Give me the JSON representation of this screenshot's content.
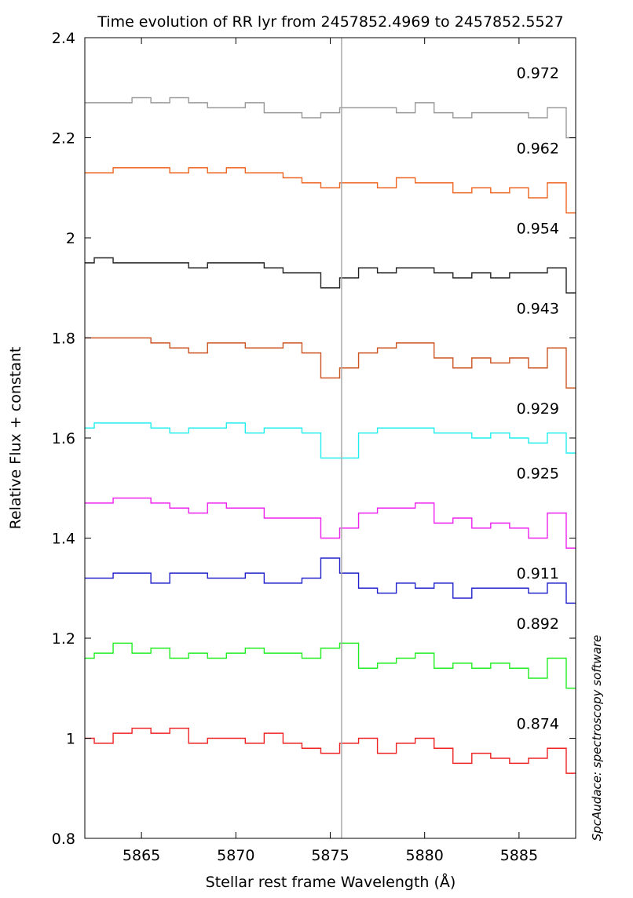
{
  "chart_data": {
    "type": "line",
    "title": "Time evolution of RR lyr from 2457852.4969 to 2457852.5527",
    "xlabel": "Stellar rest frame Wavelength (Å)",
    "ylabel": "Relative Flux + constant",
    "xlim": [
      5862,
      5888
    ],
    "ylim": [
      0.8,
      2.4
    ],
    "x_ticks": [
      5865,
      5870,
      5875,
      5880,
      5885
    ],
    "x_tick_labels": [
      "5865",
      "5870",
      "5875",
      "5880",
      "5885"
    ],
    "y_ticks": [
      0.8,
      1.0,
      1.2,
      1.4,
      1.6,
      1.8,
      2.0,
      2.2,
      2.4
    ],
    "y_tick_labels": [
      "0.8",
      "1",
      "1.2",
      "1.4",
      "1.6",
      "1.8",
      "2",
      "2.2",
      "2.4"
    ],
    "vertical_line_x": 5875.6,
    "vertical_line_color": "#aaaaaa",
    "credit": "SpcAudace: spectroscopy software",
    "grid": false,
    "series": [
      {
        "label": "0.874",
        "color": "#ee2222",
        "label_y": 1.03,
        "x": [
          5862,
          5863,
          5864,
          5865,
          5866,
          5867,
          5868,
          5869,
          5870,
          5871,
          5872,
          5873,
          5874,
          5875,
          5876,
          5877,
          5878,
          5879,
          5880,
          5881,
          5882,
          5883,
          5884,
          5885,
          5886,
          5887,
          5888
        ],
        "y": [
          1.0,
          0.99,
          1.01,
          1.02,
          1.01,
          1.02,
          0.99,
          1.0,
          1.0,
          0.99,
          1.01,
          0.99,
          0.98,
          0.97,
          0.99,
          1.0,
          0.97,
          0.99,
          1.0,
          0.98,
          0.95,
          0.97,
          0.96,
          0.95,
          0.96,
          0.98,
          0.93
        ]
      },
      {
        "label": "0.892",
        "color": "#22ee22",
        "label_y": 1.23,
        "x": [
          5862,
          5863,
          5864,
          5865,
          5866,
          5867,
          5868,
          5869,
          5870,
          5871,
          5872,
          5873,
          5874,
          5875,
          5876,
          5877,
          5878,
          5879,
          5880,
          5881,
          5882,
          5883,
          5884,
          5885,
          5886,
          5887,
          5888
        ],
        "y": [
          1.16,
          1.17,
          1.19,
          1.17,
          1.18,
          1.16,
          1.17,
          1.16,
          1.17,
          1.18,
          1.17,
          1.17,
          1.16,
          1.18,
          1.19,
          1.14,
          1.15,
          1.16,
          1.17,
          1.14,
          1.15,
          1.14,
          1.15,
          1.14,
          1.12,
          1.16,
          1.1
        ]
      },
      {
        "label": "0.911",
        "color": "#2222cc",
        "label_y": 1.33,
        "x": [
          5862,
          5863,
          5864,
          5865,
          5866,
          5867,
          5868,
          5869,
          5870,
          5871,
          5872,
          5873,
          5874,
          5875,
          5876,
          5877,
          5878,
          5879,
          5880,
          5881,
          5882,
          5883,
          5884,
          5885,
          5886,
          5887,
          5888
        ],
        "y": [
          1.32,
          1.32,
          1.33,
          1.33,
          1.31,
          1.33,
          1.33,
          1.32,
          1.32,
          1.33,
          1.31,
          1.31,
          1.32,
          1.36,
          1.33,
          1.3,
          1.29,
          1.31,
          1.3,
          1.31,
          1.28,
          1.3,
          1.3,
          1.3,
          1.29,
          1.31,
          1.27
        ]
      },
      {
        "label": "0.925",
        "color": "#ee22ee",
        "label_y": 1.53,
        "x": [
          5862,
          5863,
          5864,
          5865,
          5866,
          5867,
          5868,
          5869,
          5870,
          5871,
          5872,
          5873,
          5874,
          5875,
          5876,
          5877,
          5878,
          5879,
          5880,
          5881,
          5882,
          5883,
          5884,
          5885,
          5886,
          5887,
          5888
        ],
        "y": [
          1.47,
          1.47,
          1.48,
          1.48,
          1.47,
          1.46,
          1.45,
          1.47,
          1.46,
          1.46,
          1.44,
          1.44,
          1.44,
          1.4,
          1.42,
          1.45,
          1.46,
          1.46,
          1.47,
          1.43,
          1.44,
          1.42,
          1.43,
          1.42,
          1.4,
          1.45,
          1.38
        ]
      },
      {
        "label": "0.929",
        "color": "#22eeee",
        "label_y": 1.66,
        "x": [
          5862,
          5863,
          5864,
          5865,
          5866,
          5867,
          5868,
          5869,
          5870,
          5871,
          5872,
          5873,
          5874,
          5875,
          5876,
          5877,
          5878,
          5879,
          5880,
          5881,
          5882,
          5883,
          5884,
          5885,
          5886,
          5887,
          5888
        ],
        "y": [
          1.62,
          1.63,
          1.63,
          1.63,
          1.62,
          1.61,
          1.62,
          1.62,
          1.63,
          1.61,
          1.62,
          1.62,
          1.61,
          1.56,
          1.56,
          1.61,
          1.62,
          1.62,
          1.62,
          1.61,
          1.61,
          1.6,
          1.61,
          1.6,
          1.59,
          1.61,
          1.57
        ]
      },
      {
        "label": "0.943",
        "color": "#cc5522",
        "label_y": 1.86,
        "x": [
          5862,
          5863,
          5864,
          5865,
          5866,
          5867,
          5868,
          5869,
          5870,
          5871,
          5872,
          5873,
          5874,
          5875,
          5876,
          5877,
          5878,
          5879,
          5880,
          5881,
          5882,
          5883,
          5884,
          5885,
          5886,
          5887,
          5888
        ],
        "y": [
          1.8,
          1.8,
          1.8,
          1.8,
          1.79,
          1.78,
          1.77,
          1.79,
          1.79,
          1.78,
          1.78,
          1.79,
          1.77,
          1.72,
          1.74,
          1.77,
          1.78,
          1.79,
          1.79,
          1.76,
          1.74,
          1.76,
          1.75,
          1.76,
          1.74,
          1.78,
          1.7
        ]
      },
      {
        "label": "0.954",
        "color": "#222222",
        "label_y": 2.02,
        "x": [
          5862,
          5863,
          5864,
          5865,
          5866,
          5867,
          5868,
          5869,
          5870,
          5871,
          5872,
          5873,
          5874,
          5875,
          5876,
          5877,
          5878,
          5879,
          5880,
          5881,
          5882,
          5883,
          5884,
          5885,
          5886,
          5887,
          5888
        ],
        "y": [
          1.95,
          1.96,
          1.95,
          1.95,
          1.95,
          1.95,
          1.94,
          1.95,
          1.95,
          1.95,
          1.94,
          1.93,
          1.93,
          1.9,
          1.92,
          1.94,
          1.93,
          1.94,
          1.94,
          1.93,
          1.92,
          1.93,
          1.92,
          1.93,
          1.93,
          1.94,
          1.89
        ]
      },
      {
        "label": "0.962",
        "color": "#ee6622",
        "label_y": 2.18,
        "x": [
          5862,
          5863,
          5864,
          5865,
          5866,
          5867,
          5868,
          5869,
          5870,
          5871,
          5872,
          5873,
          5874,
          5875,
          5876,
          5877,
          5878,
          5879,
          5880,
          5881,
          5882,
          5883,
          5884,
          5885,
          5886,
          5887,
          5888
        ],
        "y": [
          2.13,
          2.13,
          2.14,
          2.14,
          2.14,
          2.13,
          2.14,
          2.13,
          2.14,
          2.13,
          2.13,
          2.12,
          2.11,
          2.1,
          2.11,
          2.11,
          2.1,
          2.12,
          2.11,
          2.11,
          2.09,
          2.1,
          2.09,
          2.1,
          2.08,
          2.11,
          2.05
        ]
      },
      {
        "label": "0.972",
        "color": "#999999",
        "label_y": 2.33,
        "x": [
          5862,
          5863,
          5864,
          5865,
          5866,
          5867,
          5868,
          5869,
          5870,
          5871,
          5872,
          5873,
          5874,
          5875,
          5876,
          5877,
          5878,
          5879,
          5880,
          5881,
          5882,
          5883,
          5884,
          5885,
          5886,
          5887,
          5888
        ],
        "y": [
          2.27,
          2.27,
          2.27,
          2.28,
          2.27,
          2.28,
          2.27,
          2.26,
          2.26,
          2.27,
          2.25,
          2.25,
          2.24,
          2.25,
          2.26,
          2.26,
          2.26,
          2.25,
          2.27,
          2.25,
          2.24,
          2.25,
          2.25,
          2.25,
          2.24,
          2.26,
          2.2
        ]
      }
    ]
  }
}
